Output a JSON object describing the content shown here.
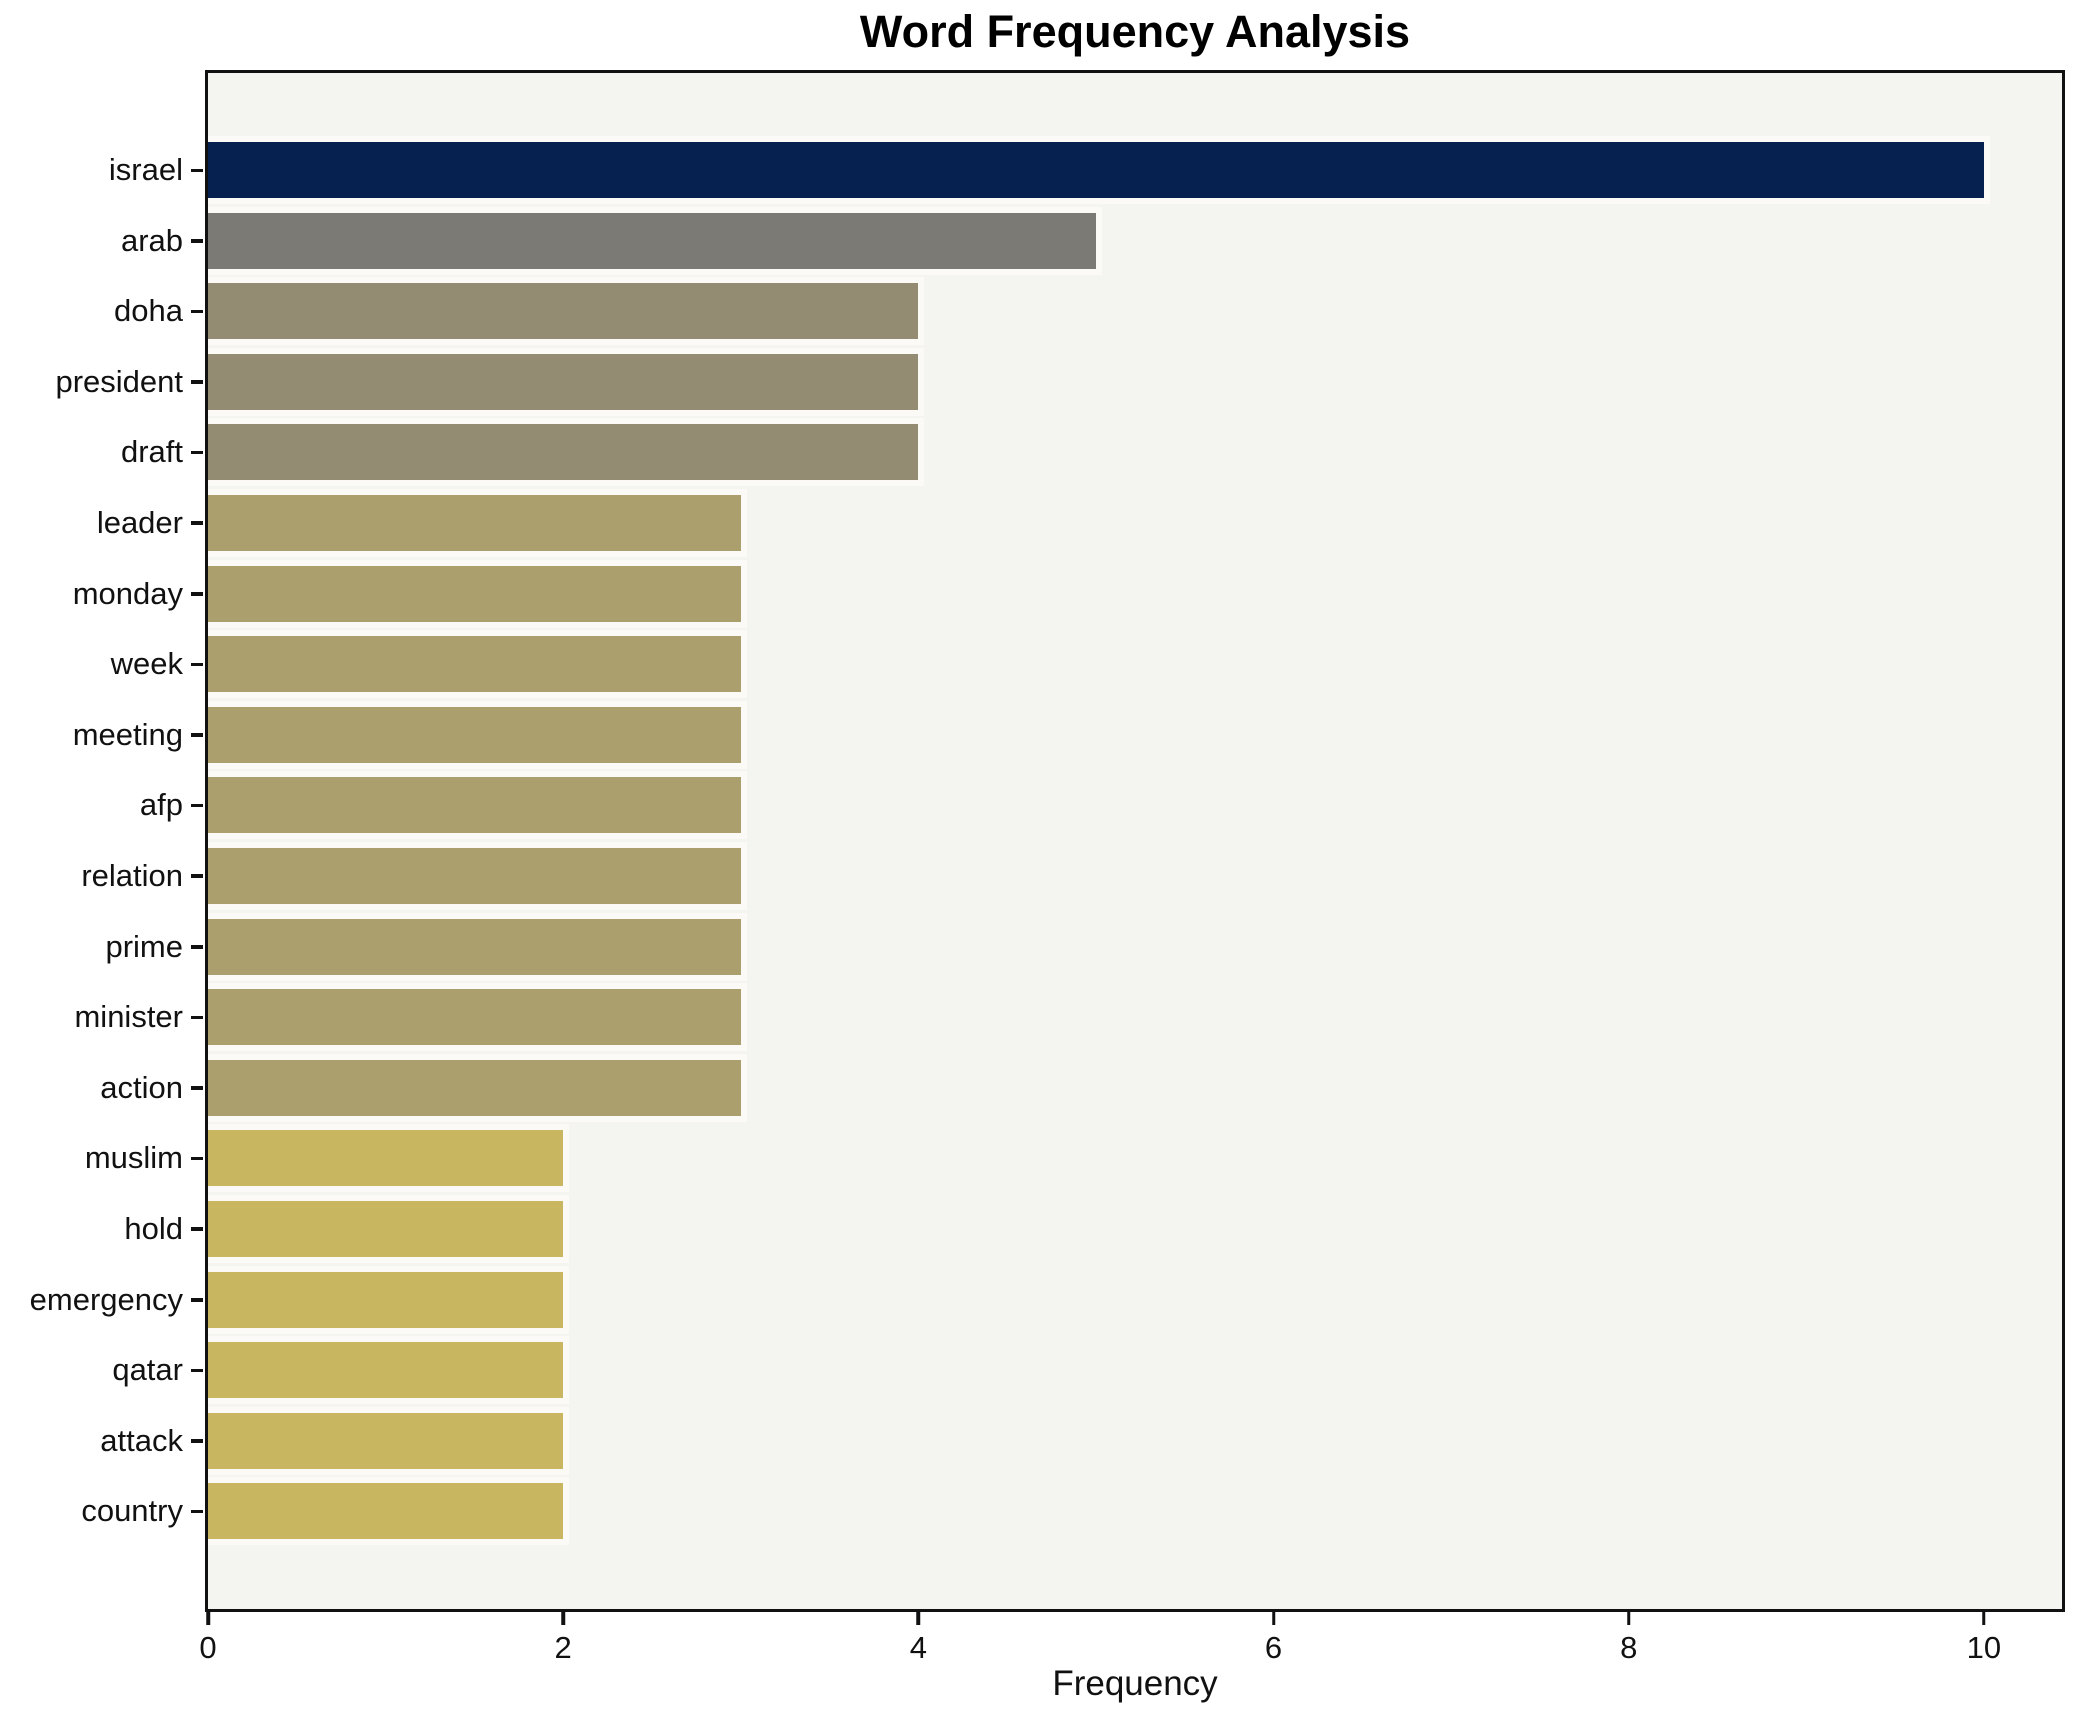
{
  "chart_data": {
    "type": "bar",
    "orientation": "horizontal",
    "title": "Word Frequency Analysis",
    "xlabel": "Frequency",
    "ylabel": "",
    "categories": [
      "israel",
      "arab",
      "doha",
      "president",
      "draft",
      "leader",
      "monday",
      "week",
      "meeting",
      "afp",
      "relation",
      "prime",
      "minister",
      "action",
      "muslim",
      "hold",
      "emergency",
      "qatar",
      "attack",
      "country"
    ],
    "values": [
      10,
      5,
      4,
      4,
      4,
      3,
      3,
      3,
      3,
      3,
      3,
      3,
      3,
      3,
      2,
      2,
      2,
      2,
      2,
      2
    ],
    "bar_colors": [
      "#062150",
      "#7c7a74",
      "#948c72",
      "#948c72",
      "#948c72",
      "#aba06d",
      "#aba06d",
      "#aba06d",
      "#aba06d",
      "#aba06d",
      "#aba06d",
      "#aba06d",
      "#aba06d",
      "#aba06d",
      "#c9b661",
      "#c9b661",
      "#c9b661",
      "#c9b661",
      "#c9b661",
      "#c9b661"
    ],
    "xlim": [
      0,
      10.44
    ],
    "xticks": [
      0,
      2,
      4,
      6,
      8,
      10
    ],
    "grid": false,
    "legend": false,
    "plot_bg": "#f4f4f1",
    "figure_bg": "#ffffff",
    "spine_color": "#111111"
  }
}
